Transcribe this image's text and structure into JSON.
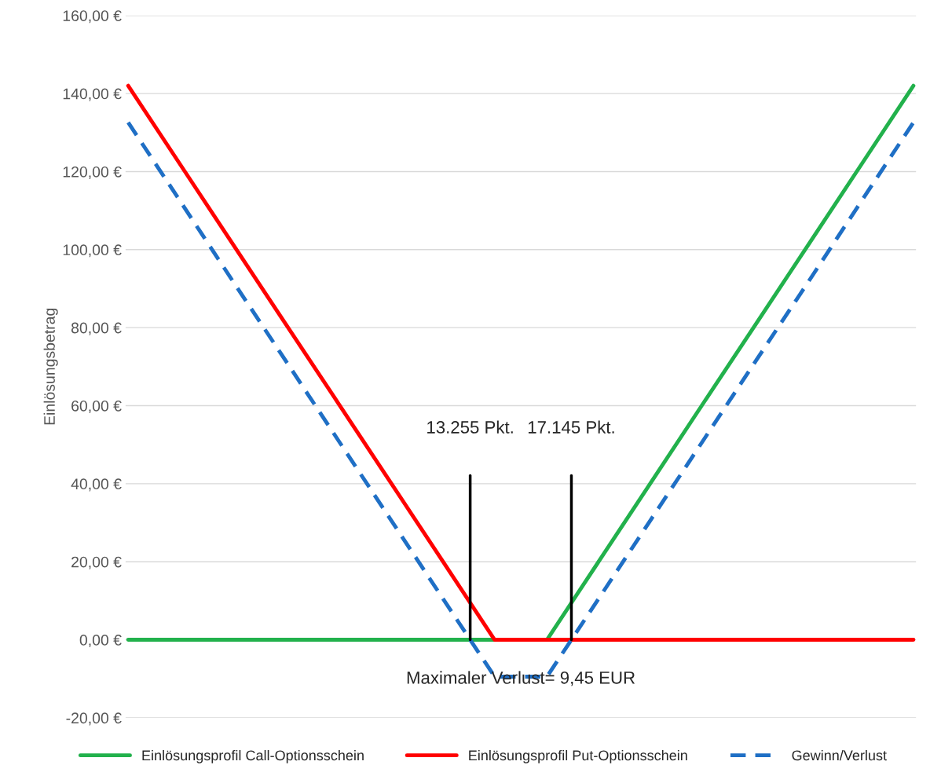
{
  "chart_data": {
    "type": "line",
    "ylabel": "Einlösungsbetrag",
    "categories": [
      null,
      null,
      null,
      null,
      null,
      null,
      null,
      null,
      null,
      null,
      null,
      null,
      null,
      null,
      null,
      null
    ],
    "series": [
      {
        "name": "Einlösungsprofil Call-Optionsschein",
        "color": "#22b14c",
        "line_style": "solid",
        "values": [
          0,
          0,
          0,
          0,
          0,
          0,
          0,
          0,
          0,
          20.3,
          40.6,
          60.9,
          81.1,
          101.4,
          121.7,
          142
        ]
      },
      {
        "name": "Einlösungsprofil Put-Optionsschein",
        "color": "#ff0000",
        "line_style": "solid",
        "values": [
          142,
          121.7,
          101.4,
          81.1,
          60.9,
          40.6,
          20.3,
          0,
          0,
          0,
          0,
          0,
          0,
          0,
          0,
          0
        ]
      },
      {
        "name": "Gewinn/Verlust",
        "color": "#1f6fc5",
        "line_style": "dashed",
        "values": [
          132.6,
          112.3,
          91.9,
          71.7,
          51.4,
          31.1,
          10.8,
          -9.45,
          -9.45,
          10.8,
          31.1,
          51.4,
          71.7,
          91.9,
          112.3,
          132.6
        ]
      }
    ],
    "ylim": [
      -20,
      160
    ],
    "yticks": [
      {
        "value": -20,
        "label": "-20,00 €"
      },
      {
        "value": 0,
        "label": "0,00 €"
      },
      {
        "value": 20,
        "label": "20,00 €"
      },
      {
        "value": 40,
        "label": "40,00 €"
      },
      {
        "value": 60,
        "label": "60,00 €"
      },
      {
        "value": 80,
        "label": "80,00 €"
      },
      {
        "value": 100,
        "label": "100,00 €"
      },
      {
        "value": 120,
        "label": "120,00 €"
      },
      {
        "value": 140,
        "label": "140,00 €"
      },
      {
        "value": 160,
        "label": "160,00 €"
      }
    ],
    "annotations": [
      "13.255 Pkt.",
      "17.145 Pkt.",
      "Maximaler Verlust= 9,45 EUR"
    ],
    "grid": "y",
    "legend": "bottom",
    "marker": "none",
    "tick_labels": "y"
  }
}
